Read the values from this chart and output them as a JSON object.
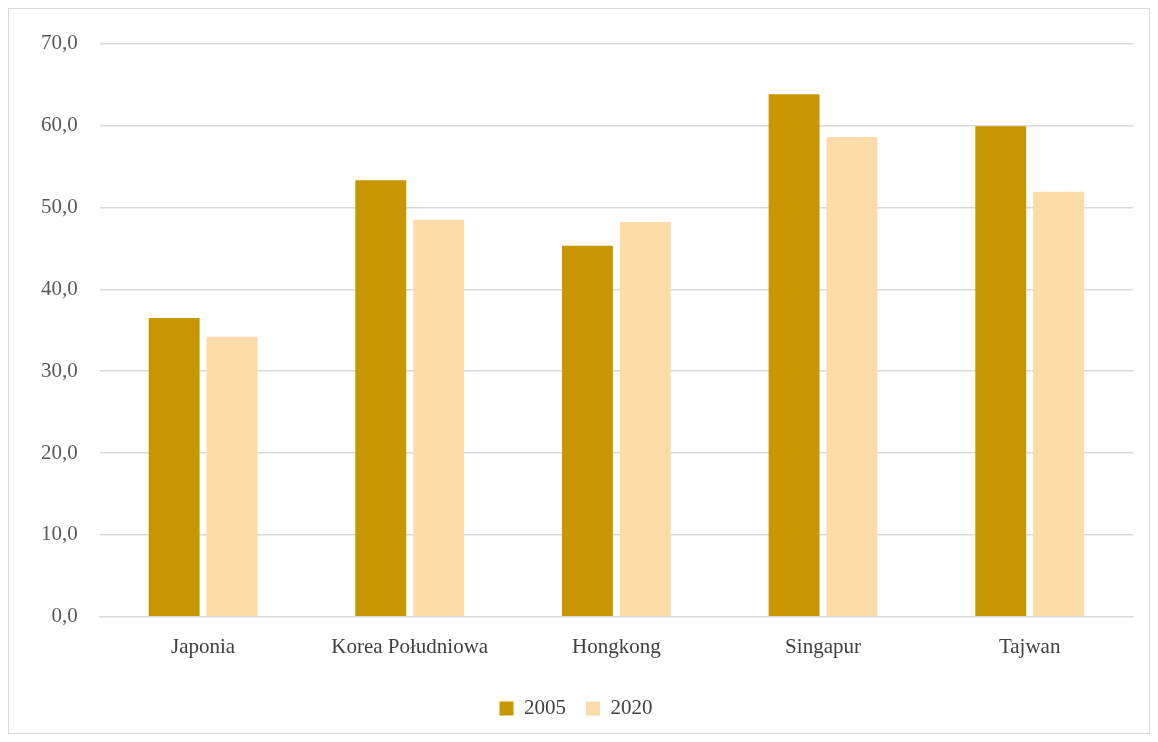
{
  "chart_data": {
    "type": "bar",
    "categories": [
      "Japonia",
      "Korea Południowa",
      "Hongkong",
      "Singapur",
      "Tajwan"
    ],
    "series": [
      {
        "name": "2005",
        "color": "#c89600",
        "values": [
          36.5,
          53.3,
          45.3,
          63.8,
          59.9
        ]
      },
      {
        "name": "2020",
        "color": "#fddcaa",
        "values": [
          34.2,
          48.5,
          48.2,
          58.6,
          51.9
        ]
      }
    ],
    "ylim": [
      0,
      70
    ],
    "yticks": [
      {
        "value": 0,
        "label": "0,0"
      },
      {
        "value": 10,
        "label": "10,0"
      },
      {
        "value": 20,
        "label": "20,0"
      },
      {
        "value": 30,
        "label": "30,0"
      },
      {
        "value": 40,
        "label": "40,0"
      },
      {
        "value": 50,
        "label": "50,0"
      },
      {
        "value": 60,
        "label": "60,0"
      },
      {
        "value": 70,
        "label": "70,0"
      }
    ],
    "grid": "y",
    "legend": "bottom"
  }
}
